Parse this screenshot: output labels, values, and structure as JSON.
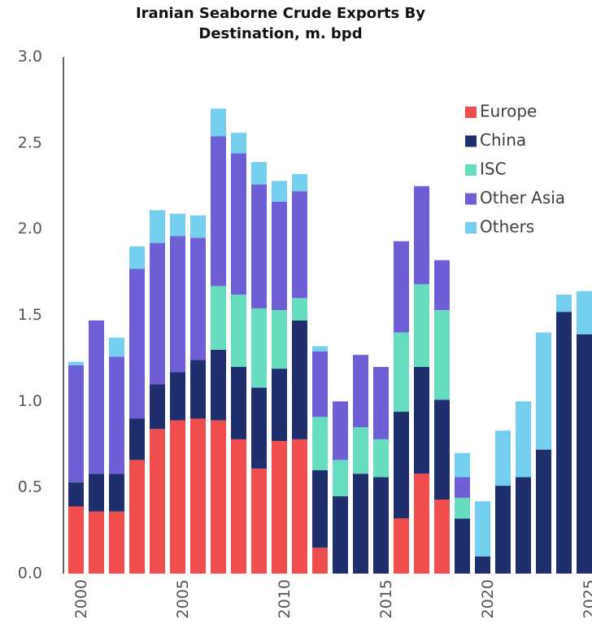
{
  "chart_data": {
    "type": "stacked_bar",
    "title": "Iranian Seaborne Crude Exports By Destination, m. bpd",
    "categories": [
      "2000",
      null,
      null,
      null,
      null,
      "2005",
      null,
      null,
      null,
      null,
      "2010",
      null,
      null,
      null,
      null,
      "2015",
      null,
      null,
      null,
      null,
      "2020",
      null,
      null,
      null,
      null,
      "2025"
    ],
    "series": [
      {
        "name": "Europe",
        "color": "#f04e4e",
        "values": [
          0.39,
          0.36,
          0.36,
          0.66,
          0.84,
          0.89,
          0.9,
          0.89,
          0.78,
          0.61,
          0.77,
          0.78,
          0.15,
          0,
          0,
          0,
          0.32,
          0.58,
          0.43,
          0,
          0,
          0,
          0,
          0,
          0,
          0
        ]
      },
      {
        "name": "China",
        "color": "#1f2f6e",
        "values": [
          0.14,
          0.22,
          0.22,
          0.24,
          0.26,
          0.28,
          0.34,
          0.41,
          0.42,
          0.47,
          0.42,
          0.69,
          0.45,
          0.45,
          0.58,
          0.56,
          0.62,
          0.62,
          0.58,
          0.32,
          0.1,
          0.51,
          0.56,
          0.72,
          1.52,
          1.39
        ]
      },
      {
        "name": "ISC",
        "color": "#66ddbf",
        "values": [
          0,
          0,
          0,
          0,
          0,
          0,
          0,
          0.37,
          0.42,
          0.46,
          0.34,
          0.13,
          0.31,
          0.21,
          0.27,
          0.22,
          0.46,
          0.48,
          0.52,
          0.12,
          0,
          0,
          0,
          0,
          0,
          0
        ]
      },
      {
        "name": "Other Asia",
        "color": "#6e5fd6",
        "values": [
          0.68,
          0.89,
          0.68,
          0.87,
          0.82,
          0.79,
          0.71,
          0.87,
          0.82,
          0.72,
          0.63,
          0.62,
          0.38,
          0.34,
          0.42,
          0.42,
          0.53,
          0.57,
          0.29,
          0.12,
          0,
          0,
          0,
          0,
          0,
          0
        ]
      },
      {
        "name": "Others",
        "color": "#74cfef",
        "values": [
          0.02,
          0,
          0.11,
          0.13,
          0.19,
          0.13,
          0.13,
          0.16,
          0.12,
          0.13,
          0.12,
          0.1,
          0.03,
          0,
          0,
          0,
          0,
          0,
          0,
          0.14,
          0.32,
          0.32,
          0.44,
          0.68,
          0.1,
          0.25
        ]
      }
    ],
    "ylim": [
      0,
      3
    ],
    "yticks": [
      {
        "value": 0,
        "label": "0.0"
      },
      0.5,
      {
        "value": 1,
        "label": "1.0"
      },
      1.5,
      {
        "value": 2,
        "label": "2.0"
      },
      2.5,
      {
        "value": 3,
        "label": "3.0"
      }
    ],
    "grid": false,
    "legend": "upper right"
  }
}
